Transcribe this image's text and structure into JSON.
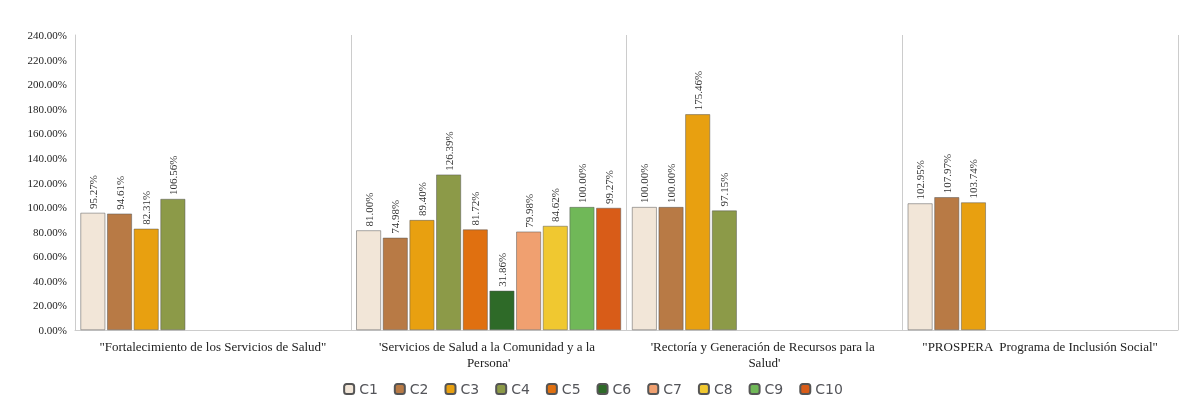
{
  "chart_data": {
    "type": "bar",
    "categories": [
      "\"Fortalecimiento de los Servicios de Salud\"",
      "'Servicios de Salud a la Comunidad y a la Persona'",
      "'Rectoría y Generación de Recursos para la Salud'",
      "\"PROSPERA  Programa de Inclusión Social\""
    ],
    "series": [
      {
        "name": "C1",
        "color": "#f2e6d8",
        "values": [
          95.27,
          81.0,
          100.0,
          102.95
        ],
        "value_labels": [
          "95.27%",
          "81.00%",
          "100.00%",
          "102.95%"
        ]
      },
      {
        "name": "C2",
        "color": "#b87a45",
        "values": [
          94.61,
          74.98,
          100.0,
          107.97
        ],
        "value_labels": [
          "94.61%",
          "74.98%",
          "100.00%",
          "107.97%"
        ]
      },
      {
        "name": "C3",
        "color": "#e8a010",
        "values": [
          82.31,
          89.4,
          175.46,
          103.74
        ],
        "value_labels": [
          "82.31%",
          "89.40%",
          "175.46%",
          "103.74%"
        ]
      },
      {
        "name": "C4",
        "color": "#8c9a48",
        "values": [
          106.56,
          126.39,
          97.15,
          null
        ],
        "value_labels": [
          "106.56%",
          "126.39%",
          "97.15%",
          null
        ]
      },
      {
        "name": "C5",
        "color": "#e07010",
        "values": [
          null,
          81.72,
          null,
          null
        ],
        "value_labels": [
          null,
          "81.72%",
          null,
          null
        ]
      },
      {
        "name": "C6",
        "color": "#2e6a28",
        "values": [
          null,
          31.86,
          null,
          null
        ],
        "value_labels": [
          null,
          "31.86%",
          null,
          null
        ]
      },
      {
        "name": "C7",
        "color": "#f0a070",
        "values": [
          null,
          79.98,
          null,
          null
        ],
        "value_labels": [
          null,
          "79.98%",
          null,
          null
        ]
      },
      {
        "name": "C8",
        "color": "#f0c830",
        "values": [
          null,
          84.62,
          null,
          null
        ],
        "value_labels": [
          null,
          "84.62%",
          null,
          null
        ]
      },
      {
        "name": "C9",
        "color": "#70b858",
        "values": [
          null,
          100.0,
          null,
          null
        ],
        "value_labels": [
          null,
          "100.00%",
          null,
          null
        ]
      },
      {
        "name": "C10",
        "color": "#d85c18",
        "values": [
          null,
          99.27,
          null,
          null
        ],
        "value_labels": [
          null,
          "99.27%",
          null,
          null
        ]
      }
    ],
    "ylim": [
      0,
      240
    ],
    "yticks": [
      {
        "value": 0,
        "label": "0.00%"
      },
      {
        "value": 20,
        "label": "20.00%"
      },
      {
        "value": 40,
        "label": "40.00%"
      },
      {
        "value": 60,
        "label": "60.00%"
      },
      {
        "value": 80,
        "label": "80.00%"
      },
      {
        "value": 100,
        "label": "100.00%"
      },
      {
        "value": 120,
        "label": "120.00%"
      },
      {
        "value": 140,
        "label": "140.00%"
      },
      {
        "value": 160,
        "label": "160.00%"
      },
      {
        "value": 180,
        "label": "180.00%"
      },
      {
        "value": 200,
        "label": "200.00%"
      },
      {
        "value": 220,
        "label": "220.00%"
      },
      {
        "value": 240,
        "label": "240.00%"
      }
    ],
    "grid": "x",
    "legend": "bottom"
  }
}
